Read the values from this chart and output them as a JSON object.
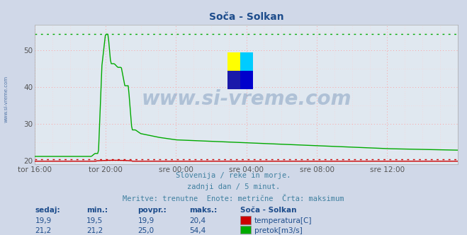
{
  "title": "Soča - Solkan",
  "background_color": "#d0d8e8",
  "plot_bg_color": "#e0e8f0",
  "grid_color": "#ff9999",
  "grid_color_minor": "#ffcccc",
  "ylim": [
    19.0,
    57.0
  ],
  "yticks": [
    20,
    30,
    40,
    50
  ],
  "xlabel_ticks": [
    "tor 16:00",
    "tor 20:00",
    "sre 00:00",
    "sre 04:00",
    "sre 08:00",
    "sre 12:00"
  ],
  "temp_color": "#cc0000",
  "flow_color": "#00aa00",
  "temp_max": 20.4,
  "flow_max": 54.4,
  "watermark": "www.si-vreme.com",
  "watermark_color": "#1e4d8c",
  "watermark_alpha": 0.25,
  "subtitle1": "Slovenija / reke in morje.",
  "subtitle2": "zadnji dan / 5 minut.",
  "subtitle3": "Meritve: trenutne  Enote: metrične  Črta: maksimum",
  "subtitle_color": "#4080a0",
  "table_header": [
    "sedaj:",
    "min.:",
    "povpr.:",
    "maks.:",
    "Soča - Solkan"
  ],
  "table_row1": [
    "19,9",
    "19,5",
    "19,9",
    "20,4",
    "temperatura[C]"
  ],
  "table_row2": [
    "21,2",
    "21,2",
    "25,0",
    "54,4",
    "pretok[m3/s]"
  ],
  "table_color": "#1e4d8c",
  "sidebar_text": "www.si-vreme.com",
  "sidebar_color": "#1e4d8c",
  "logo_colors": [
    "#ffff00",
    "#00ccff",
    "#0000cc",
    "#1a1aaa"
  ]
}
